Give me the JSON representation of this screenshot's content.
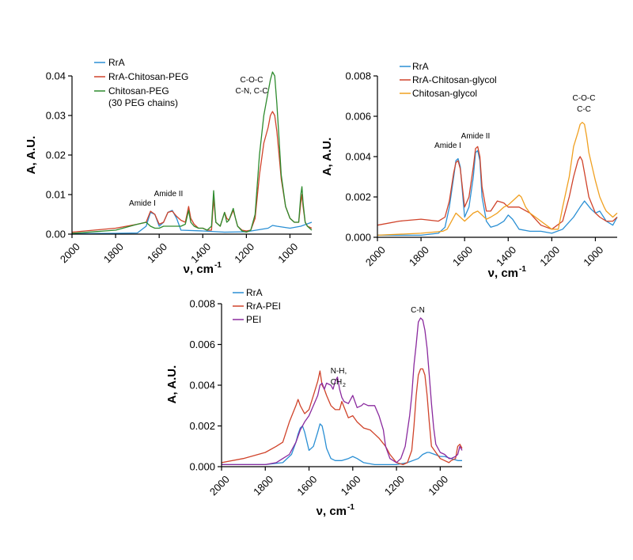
{
  "colors": {
    "RrA": "#2a8fd4",
    "RrA-Chitosan-PEG": "#d0432a",
    "Chitosan-PEG": "#2e8b2e",
    "RrA-Chitosan-glycol": "#d0432a",
    "Chitosan-glycol": "#f0a020",
    "RrA-PEI": "#d0432a",
    "PEI": "#8a2a9e"
  },
  "chart_data": [
    {
      "type": "line",
      "xlabel": "ν, cm",
      "xlabel_sup": "-1",
      "ylabel": "A,  A.U.",
      "xlim": [
        2000,
        900
      ],
      "ylim": [
        0,
        0.04
      ],
      "xticks": [
        2000,
        1800,
        1600,
        1400,
        1200,
        1000
      ],
      "yticks": [
        "0.00",
        "0.01",
        "0.02",
        "0.03",
        "0.04"
      ],
      "ytick_values": [
        0,
        0.01,
        0.02,
        0.03,
        0.04
      ],
      "legend": [
        "RrA",
        "RrA-Chitosan-PEG",
        "Chitosan-PEG",
        "(30 PEG chains)"
      ],
      "annotations": [
        "Amide I",
        "Amide II",
        "C-O-C",
        "C-N, C-C"
      ],
      "series": [
        {
          "name": "RrA",
          "x": [
            2000,
            1800,
            1700,
            1660,
            1640,
            1620,
            1600,
            1580,
            1560,
            1540,
            1520,
            1500,
            1400,
            1300,
            1200,
            1100,
            1080,
            1060,
            1000,
            950,
            900
          ],
          "y": [
            0.0001,
            0.0002,
            0.0003,
            0.002,
            0.0055,
            0.005,
            0.002,
            0.003,
            0.0055,
            0.006,
            0.004,
            0.001,
            0.0008,
            0.0005,
            0.0006,
            0.0015,
            0.0022,
            0.002,
            0.0015,
            0.002,
            0.003
          ]
        },
        {
          "name": "RrA-Chitosan-PEG",
          "x": [
            2000,
            1800,
            1700,
            1660,
            1640,
            1620,
            1600,
            1580,
            1560,
            1540,
            1520,
            1500,
            1480,
            1465,
            1455,
            1440,
            1420,
            1400,
            1380,
            1360,
            1350,
            1340,
            1320,
            1300,
            1290,
            1280,
            1260,
            1250,
            1240,
            1220,
            1200,
            1180,
            1160,
            1140,
            1120,
            1100,
            1090,
            1080,
            1070,
            1060,
            1050,
            1040,
            1020,
            1000,
            980,
            960,
            950,
            945,
            940,
            930,
            920,
            900
          ],
          "y": [
            0.0005,
            0.0015,
            0.0025,
            0.003,
            0.0058,
            0.005,
            0.0025,
            0.003,
            0.0055,
            0.0058,
            0.0045,
            0.0035,
            0.003,
            0.007,
            0.004,
            0.0025,
            0.0015,
            0.0015,
            0.001,
            0.001,
            0.009,
            0.003,
            0.002,
            0.0055,
            0.004,
            0.0035,
            0.006,
            0.004,
            0.002,
            0.001,
            0.0008,
            0.001,
            0.004,
            0.015,
            0.023,
            0.027,
            0.03,
            0.031,
            0.03,
            0.026,
            0.02,
            0.014,
            0.007,
            0.004,
            0.003,
            0.003,
            0.008,
            0.01,
            0.007,
            0.003,
            0.002,
            0.0015
          ]
        },
        {
          "name": "Chitosan-PEG",
          "x": [
            2000,
            1800,
            1700,
            1660,
            1640,
            1620,
            1600,
            1580,
            1560,
            1540,
            1520,
            1500,
            1480,
            1465,
            1455,
            1440,
            1420,
            1400,
            1380,
            1360,
            1350,
            1340,
            1320,
            1300,
            1290,
            1280,
            1260,
            1250,
            1240,
            1220,
            1200,
            1180,
            1160,
            1140,
            1120,
            1100,
            1090,
            1080,
            1070,
            1060,
            1050,
            1040,
            1020,
            1000,
            980,
            960,
            950,
            945,
            940,
            930,
            920,
            900
          ],
          "y": [
            0.0002,
            0.001,
            0.0025,
            0.003,
            0.002,
            0.0015,
            0.0015,
            0.002,
            0.002,
            0.002,
            0.002,
            0.002,
            0.0025,
            0.006,
            0.003,
            0.002,
            0.0015,
            0.0015,
            0.001,
            0.002,
            0.011,
            0.003,
            0.002,
            0.0055,
            0.003,
            0.0035,
            0.0065,
            0.004,
            0.002,
            0.0008,
            0.0005,
            0.001,
            0.005,
            0.02,
            0.03,
            0.036,
            0.039,
            0.041,
            0.04,
            0.033,
            0.024,
            0.015,
            0.007,
            0.004,
            0.003,
            0.003,
            0.01,
            0.012,
            0.008,
            0.003,
            0.002,
            0.001
          ]
        }
      ]
    },
    {
      "type": "line",
      "xlabel": "ν, cm",
      "xlabel_sup": "-1",
      "ylabel": "A,  A.U.",
      "xlim": [
        2000,
        900
      ],
      "ylim": [
        0,
        0.008
      ],
      "xticks": [
        2000,
        1800,
        1600,
        1400,
        1200,
        1000
      ],
      "yticks": [
        "0.000",
        "0.002",
        "0.004",
        "0.006",
        "0.008"
      ],
      "ytick_values": [
        0,
        0.002,
        0.004,
        0.006,
        0.008
      ],
      "legend": [
        "RrA",
        "RrA-Chitosan-glycol",
        "Chitosan-glycol"
      ],
      "annotations": [
        "Amide I",
        "Amide II",
        "C-O-C",
        "C-C"
      ],
      "series": [
        {
          "name": "RrA",
          "x": [
            2000,
            1800,
            1720,
            1690,
            1670,
            1650,
            1640,
            1630,
            1620,
            1600,
            1580,
            1560,
            1550,
            1540,
            1530,
            1520,
            1500,
            1480,
            1450,
            1420,
            1400,
            1380,
            1350,
            1300,
            1250,
            1200,
            1150,
            1100,
            1070,
            1050,
            1020,
            1000,
            980,
            950,
            920,
            900
          ],
          "y": [
            0.0001,
            0.0001,
            0.0002,
            0.0005,
            0.0015,
            0.003,
            0.0038,
            0.0039,
            0.0035,
            0.001,
            0.0015,
            0.003,
            0.0042,
            0.0043,
            0.0038,
            0.002,
            0.0008,
            0.0005,
            0.0006,
            0.0008,
            0.0011,
            0.0009,
            0.0004,
            0.0003,
            0.0003,
            0.0002,
            0.0004,
            0.001,
            0.0015,
            0.0018,
            0.0014,
            0.0012,
            0.0013,
            0.0008,
            0.0006,
            0.001
          ]
        },
        {
          "name": "RrA-Chitosan-glycol",
          "x": [
            2000,
            1900,
            1800,
            1720,
            1690,
            1670,
            1650,
            1640,
            1630,
            1620,
            1600,
            1580,
            1560,
            1550,
            1540,
            1530,
            1520,
            1500,
            1480,
            1450,
            1420,
            1400,
            1380,
            1350,
            1300,
            1250,
            1200,
            1150,
            1120,
            1100,
            1080,
            1070,
            1060,
            1050,
            1030,
            1000,
            980,
            950,
            920,
            900
          ],
          "y": [
            0.0006,
            0.0008,
            0.0009,
            0.0008,
            0.001,
            0.0018,
            0.0032,
            0.0037,
            0.0038,
            0.0034,
            0.0015,
            0.002,
            0.0035,
            0.0044,
            0.0045,
            0.004,
            0.0025,
            0.0013,
            0.0013,
            0.0018,
            0.0017,
            0.0015,
            0.0015,
            0.0015,
            0.0012,
            0.0006,
            0.0004,
            0.0008,
            0.002,
            0.003,
            0.0038,
            0.004,
            0.0038,
            0.0032,
            0.002,
            0.0012,
            0.001,
            0.0008,
            0.0008,
            0.001
          ]
        },
        {
          "name": "Chitosan-glycol",
          "x": [
            2000,
            1800,
            1700,
            1680,
            1660,
            1640,
            1620,
            1600,
            1580,
            1560,
            1540,
            1520,
            1500,
            1480,
            1450,
            1420,
            1400,
            1380,
            1360,
            1350,
            1340,
            1320,
            1300,
            1250,
            1200,
            1170,
            1150,
            1120,
            1100,
            1080,
            1070,
            1060,
            1050,
            1040,
            1030,
            1000,
            980,
            960,
            950,
            920,
            900
          ],
          "y": [
            0.0001,
            0.0002,
            0.0003,
            0.0004,
            0.0008,
            0.0012,
            0.001,
            0.0008,
            0.001,
            0.0012,
            0.0013,
            0.0011,
            0.0009,
            0.001,
            0.0012,
            0.0015,
            0.0016,
            0.0018,
            0.002,
            0.0021,
            0.002,
            0.0015,
            0.0012,
            0.0008,
            0.0004,
            0.0004,
            0.0015,
            0.003,
            0.0045,
            0.0052,
            0.0056,
            0.0057,
            0.0056,
            0.005,
            0.0042,
            0.0028,
            0.002,
            0.0015,
            0.0013,
            0.001,
            0.0012
          ]
        }
      ]
    },
    {
      "type": "line",
      "xlabel": "ν, cm",
      "xlabel_sup": "-1",
      "ylabel": "A,  A.U.",
      "xlim": [
        2000,
        900
      ],
      "ylim": [
        0,
        0.008
      ],
      "xticks": [
        2000,
        1800,
        1600,
        1400,
        1200,
        1000
      ],
      "yticks": [
        "0.000",
        "0.002",
        "0.004",
        "0.006",
        "0.008"
      ],
      "ytick_values": [
        0,
        0.002,
        0.004,
        0.006,
        0.008
      ],
      "legend": [
        "RrA",
        "RrA-PEI",
        "PEI"
      ],
      "annotations": [
        "C-N",
        "N-H,",
        "CH",
        "2"
      ],
      "series": [
        {
          "name": "RrA",
          "x": [
            2000,
            1800,
            1720,
            1680,
            1660,
            1650,
            1640,
            1630,
            1620,
            1600,
            1580,
            1560,
            1550,
            1540,
            1530,
            1520,
            1500,
            1480,
            1450,
            1420,
            1400,
            1380,
            1350,
            1300,
            1250,
            1200,
            1150,
            1100,
            1080,
            1060,
            1050,
            1000,
            980,
            950,
            920,
            900
          ],
          "y": [
            0.0001,
            0.0001,
            0.0002,
            0.0006,
            0.0012,
            0.0016,
            0.0019,
            0.002,
            0.0017,
            0.0008,
            0.001,
            0.0017,
            0.0021,
            0.002,
            0.0015,
            0.0009,
            0.0004,
            0.0003,
            0.0003,
            0.0004,
            0.0005,
            0.0004,
            0.0002,
            0.0001,
            0.0001,
            0.0001,
            0.0002,
            0.0004,
            0.0006,
            0.0007,
            0.0007,
            0.0005,
            0.0005,
            0.0004,
            0.0003,
            0.0003
          ]
        },
        {
          "name": "RrA-PEI",
          "x": [
            2000,
            1900,
            1800,
            1750,
            1720,
            1690,
            1660,
            1650,
            1640,
            1620,
            1600,
            1580,
            1560,
            1550,
            1540,
            1530,
            1520,
            1500,
            1480,
            1460,
            1450,
            1420,
            1400,
            1380,
            1350,
            1320,
            1300,
            1280,
            1250,
            1230,
            1200,
            1170,
            1150,
            1130,
            1120,
            1110,
            1100,
            1090,
            1080,
            1070,
            1060,
            1050,
            1040,
            1000,
            980,
            960,
            950,
            930,
            920,
            910,
            900
          ],
          "y": [
            0.0002,
            0.0004,
            0.0007,
            0.001,
            0.0012,
            0.0022,
            0.003,
            0.0033,
            0.003,
            0.0026,
            0.0028,
            0.0035,
            0.0042,
            0.0047,
            0.004,
            0.0038,
            0.0035,
            0.003,
            0.0028,
            0.0028,
            0.0032,
            0.0024,
            0.0025,
            0.0022,
            0.0019,
            0.0018,
            0.0016,
            0.0014,
            0.001,
            0.0006,
            0.0002,
            0.0001,
            0.0002,
            0.0008,
            0.002,
            0.0035,
            0.0045,
            0.0048,
            0.0048,
            0.0045,
            0.0035,
            0.0022,
            0.001,
            0.0004,
            0.0003,
            0.0002,
            0.0003,
            0.0004,
            0.001,
            0.0011,
            0.0009
          ]
        },
        {
          "name": "PEI",
          "x": [
            2000,
            1800,
            1750,
            1720,
            1690,
            1660,
            1640,
            1620,
            1600,
            1580,
            1560,
            1550,
            1540,
            1530,
            1520,
            1500,
            1490,
            1480,
            1470,
            1460,
            1450,
            1440,
            1420,
            1400,
            1380,
            1360,
            1350,
            1330,
            1300,
            1280,
            1260,
            1250,
            1230,
            1200,
            1180,
            1160,
            1140,
            1130,
            1120,
            1110,
            1100,
            1090,
            1080,
            1070,
            1060,
            1050,
            1040,
            1030,
            1020,
            1000,
            980,
            960,
            950,
            930,
            920,
            910,
            900
          ],
          "y": [
            0.0001,
            0.0001,
            0.0002,
            0.0004,
            0.0006,
            0.0012,
            0.0018,
            0.0022,
            0.0025,
            0.003,
            0.0035,
            0.004,
            0.0041,
            0.0038,
            0.0041,
            0.004,
            0.0038,
            0.0042,
            0.0044,
            0.0038,
            0.0034,
            0.0032,
            0.0031,
            0.0035,
            0.0029,
            0.003,
            0.0031,
            0.003,
            0.003,
            0.0025,
            0.0018,
            0.001,
            0.0004,
            0.0002,
            0.0004,
            0.001,
            0.0025,
            0.0035,
            0.005,
            0.006,
            0.0071,
            0.0073,
            0.0072,
            0.0067,
            0.0058,
            0.0045,
            0.0031,
            0.0019,
            0.0011,
            0.0007,
            0.0006,
            0.0004,
            0.0004,
            0.0005,
            0.0006,
            0.001,
            0.0008
          ]
        }
      ]
    }
  ]
}
